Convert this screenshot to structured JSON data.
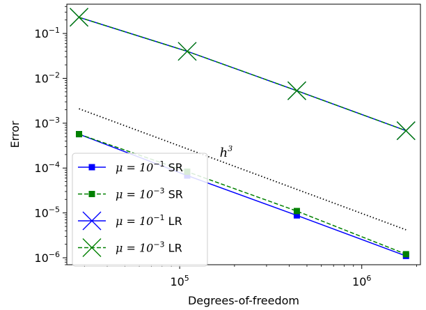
{
  "chart_data": {
    "type": "line",
    "xlabel": "Degrees-of-freedom",
    "ylabel": "Error",
    "xscale": "log",
    "yscale": "log",
    "xlim": [
      24000,
      2100000
    ],
    "ylim": [
      7e-07,
      0.45
    ],
    "grid": false,
    "legend_position": "lower-left",
    "x_ticks": [
      {
        "value": 100000,
        "base": "10",
        "exp": "5"
      },
      {
        "value": 1000000,
        "base": "10",
        "exp": "6"
      }
    ],
    "y_ticks": [
      {
        "value": 0.1,
        "base": "10",
        "exp": "−1"
      },
      {
        "value": 0.01,
        "base": "10",
        "exp": "−2"
      },
      {
        "value": 0.001,
        "base": "10",
        "exp": "−3"
      },
      {
        "value": 0.0001,
        "base": "10",
        "exp": "−4"
      },
      {
        "value": 1e-05,
        "base": "10",
        "exp": "−5"
      },
      {
        "value": 1e-06,
        "base": "10",
        "exp": "−6"
      }
    ],
    "series": [
      {
        "name_prefix": "μ = 10",
        "name_exp": "−1",
        "name_suffix": " SR",
        "color": "#0000ff",
        "dash": "solid",
        "marker": "square",
        "x": [
          28000,
          110000,
          440000,
          1750000
        ],
        "y": [
          0.00057,
          6.8e-05,
          8.8e-06,
          1.1e-06
        ]
      },
      {
        "name_prefix": "μ = 10",
        "name_exp": "−3",
        "name_suffix": " SR",
        "color": "#008000",
        "dash": "dashed",
        "marker": "square",
        "x": [
          28000,
          110000,
          440000,
          1750000
        ],
        "y": [
          0.00057,
          8.3e-05,
          1.1e-05,
          1.2e-06
        ]
      },
      {
        "name_prefix": "μ = 10",
        "name_exp": "−1",
        "name_suffix": " LR",
        "color": "#0000ff",
        "dash": "solid",
        "marker": "x",
        "x": [
          28000,
          110000,
          440000,
          1750000
        ],
        "y": [
          0.23,
          0.04,
          0.0053,
          0.00068
        ]
      },
      {
        "name_prefix": "μ = 10",
        "name_exp": "−3",
        "name_suffix": " LR",
        "color": "#008000",
        "dash": "dashed",
        "marker": "x",
        "x": [
          28000,
          110000,
          440000,
          1750000
        ],
        "y": [
          0.23,
          0.04,
          0.0053,
          0.00068
        ]
      }
    ],
    "reference_line": {
      "label_base": "h",
      "label_exp": "3",
      "color": "#000000",
      "dash": "dotted",
      "x": [
        28000,
        1750000
      ],
      "y": [
        0.0021,
        4.2e-06
      ],
      "label_at": {
        "x": 180000,
        "y": 0.00018
      }
    }
  }
}
